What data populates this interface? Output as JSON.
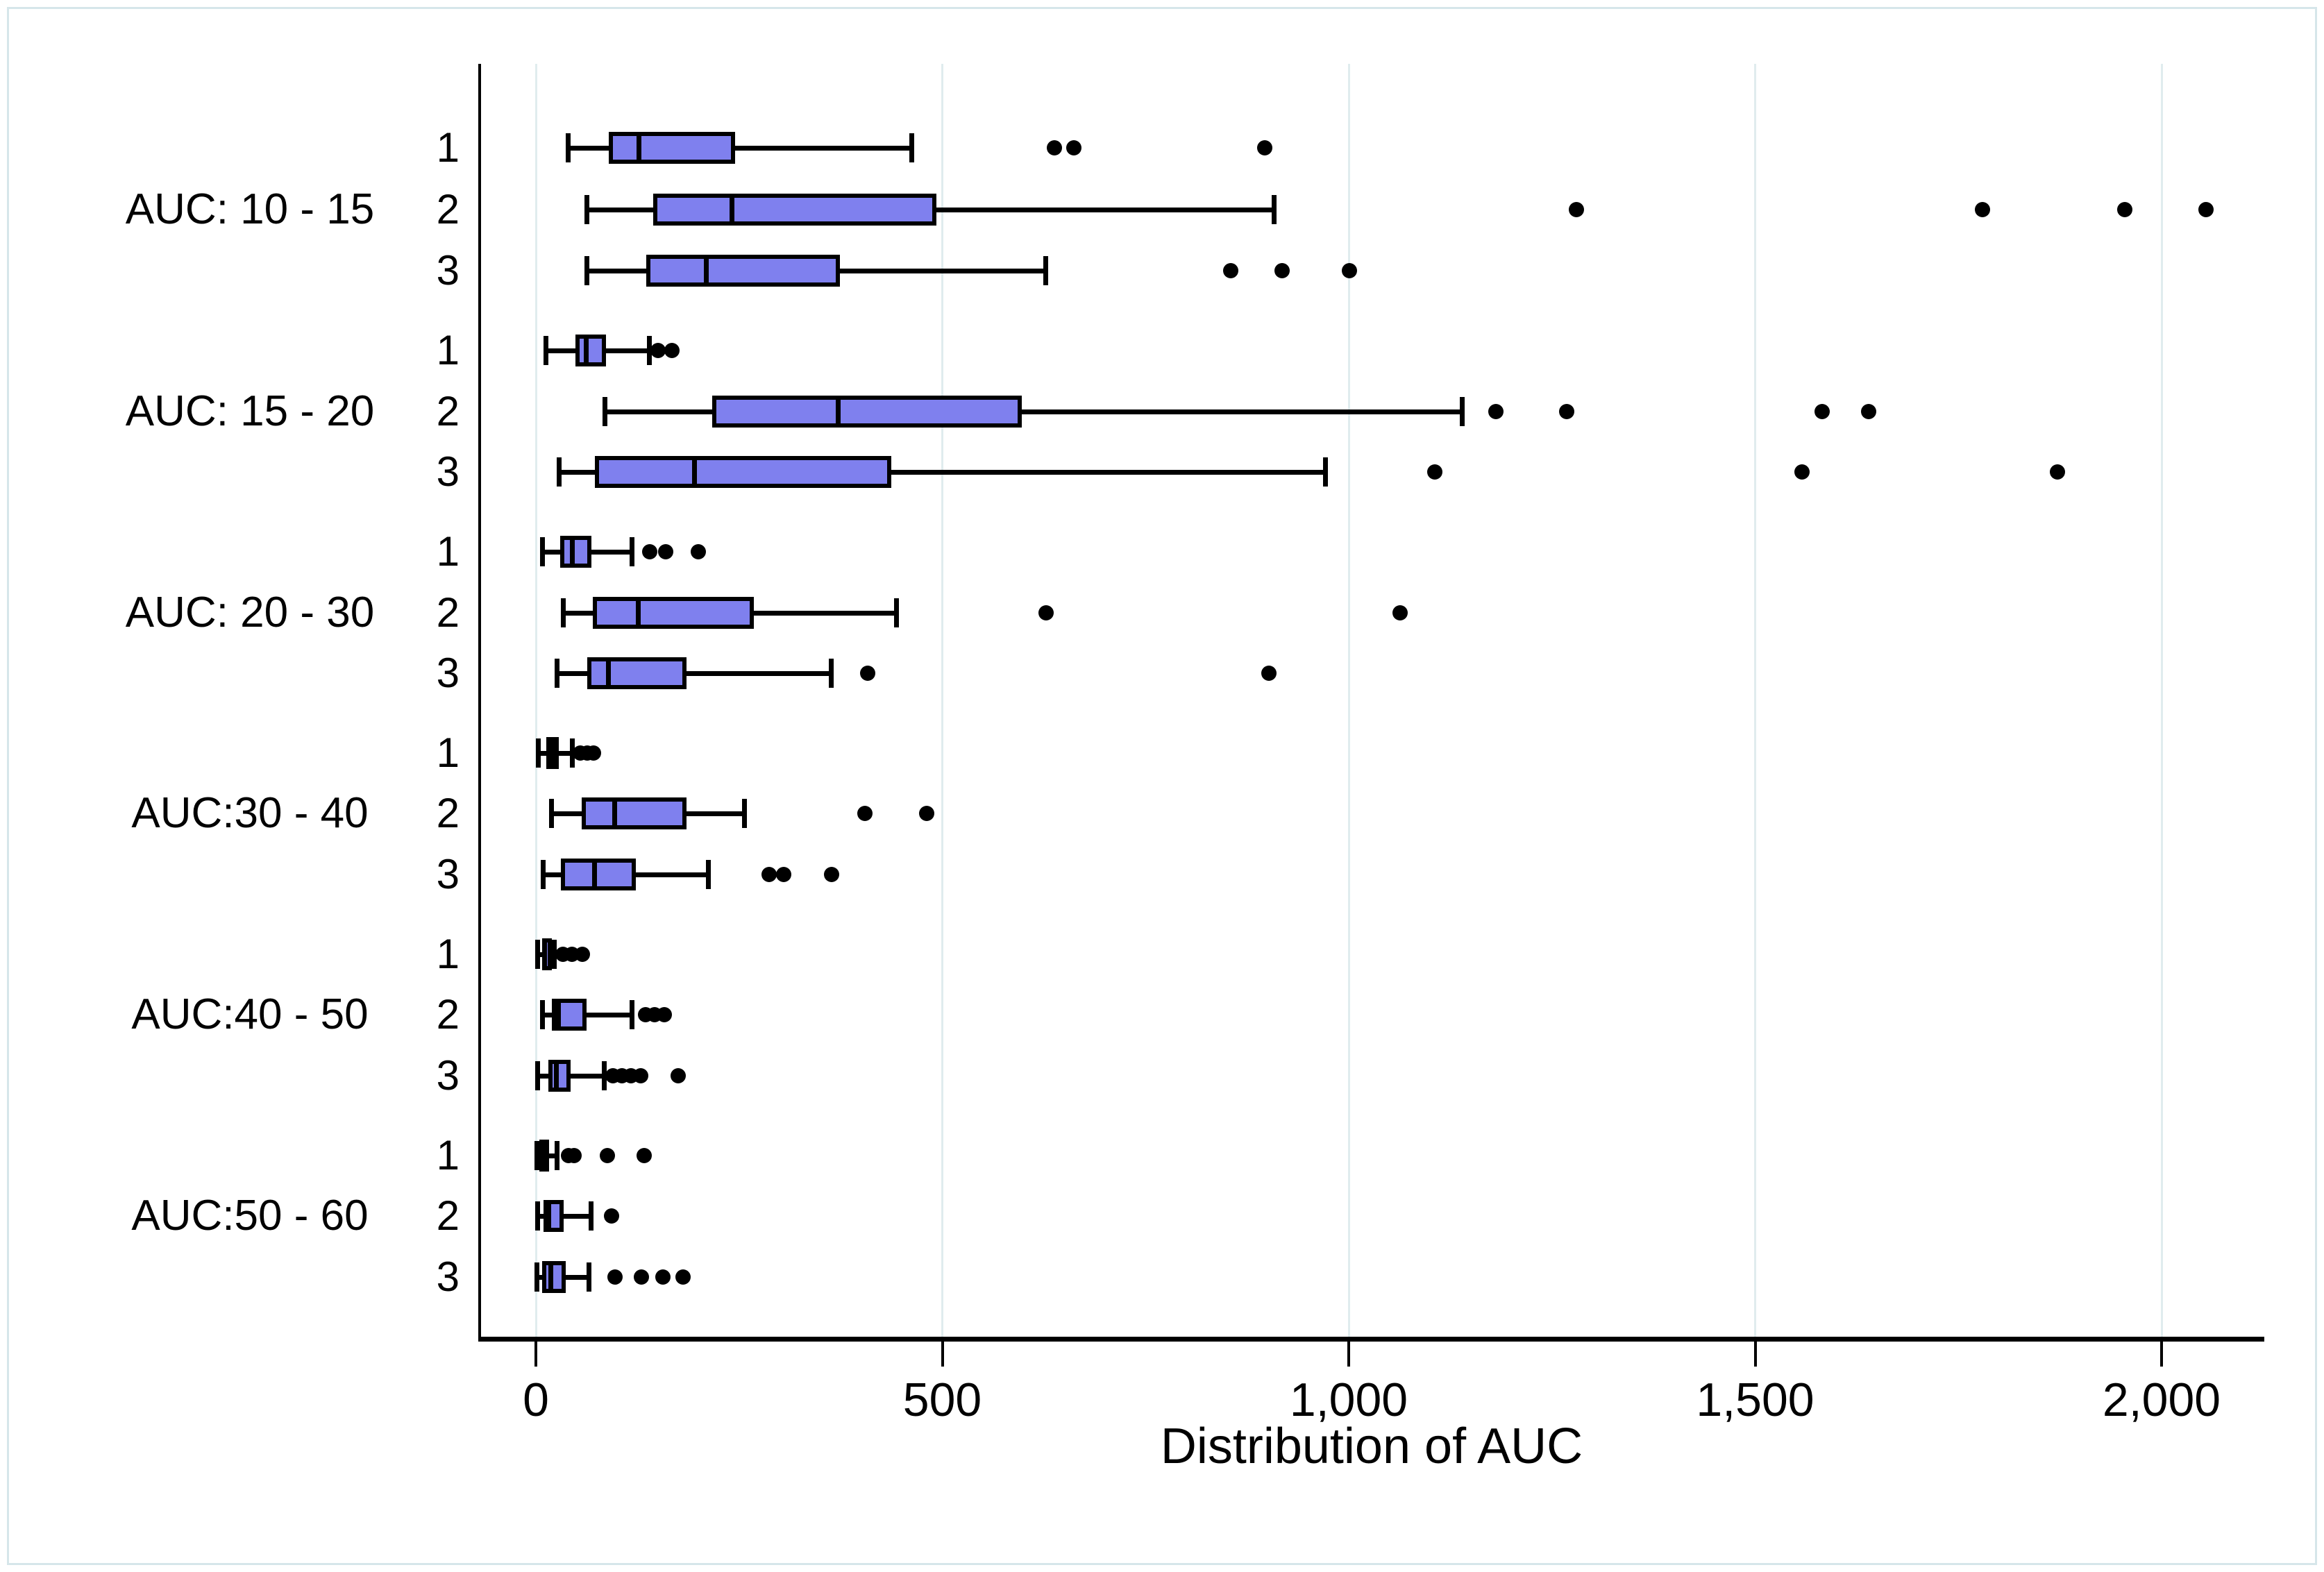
{
  "chart_data": {
    "type": "boxplot_horizontal",
    "title": "",
    "xlabel": "Distribution of AUC",
    "x_tick_values": [
      0,
      500,
      1000,
      1500,
      2000
    ],
    "x_tick_labels": [
      "0",
      "500",
      "1,000",
      "1,500",
      "2,000"
    ],
    "xlim": [
      -70,
      2125
    ],
    "grid": "vertical-gridlines-on",
    "legend": "none",
    "row_labels": [
      "1",
      "2",
      "3"
    ],
    "groups": [
      {
        "label": "AUC: 10 - 15",
        "series": [
          {
            "label": "1",
            "whislo": 40,
            "q1": 90,
            "med": 127,
            "q3": 245,
            "whishi": 462,
            "outliers": [
              638,
              662,
              897
            ]
          },
          {
            "label": "2",
            "whislo": 63,
            "q1": 144,
            "med": 241,
            "q3": 493,
            "whishi": 908,
            "outliers": [
              1280,
              1780,
              1955,
              2055
            ]
          },
          {
            "label": "3",
            "whislo": 63,
            "q1": 136,
            "med": 210,
            "q3": 374,
            "whishi": 627,
            "outliers": [
              855,
              918,
              1001
            ]
          }
        ]
      },
      {
        "label": "AUC: 15 - 20",
        "series": [
          {
            "label": "1",
            "whislo": 12,
            "q1": 49,
            "med": 62,
            "q3": 86,
            "whishi": 140,
            "outliers": [
              150,
              167
            ]
          },
          {
            "label": "2",
            "whislo": 85,
            "q1": 217,
            "med": 372,
            "q3": 598,
            "whishi": 1140,
            "outliers": [
              1181,
              1268,
              1582,
              1640
            ]
          },
          {
            "label": "3",
            "whislo": 29,
            "q1": 73,
            "med": 195,
            "q3": 437,
            "whishi": 971,
            "outliers": [
              1106,
              1558,
              1872
            ]
          }
        ]
      },
      {
        "label": "AUC: 20 - 30",
        "series": [
          {
            "label": "1",
            "whislo": 8,
            "q1": 30,
            "med": 45,
            "q3": 68,
            "whishi": 118,
            "outliers": [
              140,
              160,
              200
            ]
          },
          {
            "label": "2",
            "whislo": 34,
            "q1": 70,
            "med": 126,
            "q3": 268,
            "whishi": 444,
            "outliers": [
              628,
              1063
            ]
          },
          {
            "label": "3",
            "whislo": 26,
            "q1": 63,
            "med": 89,
            "q3": 185,
            "whishi": 363,
            "outliers": [
              408,
              902
            ]
          }
        ]
      },
      {
        "label": "AUC:30 - 40",
        "series": [
          {
            "label": "1",
            "whislo": 3,
            "q1": 13,
            "med": 20,
            "q3": 28,
            "whishi": 45,
            "outliers": [
              55,
              63,
              71
            ]
          },
          {
            "label": "2",
            "whislo": 19,
            "q1": 56,
            "med": 97,
            "q3": 185,
            "whishi": 257,
            "outliers": [
              405,
              481
            ]
          },
          {
            "label": "3",
            "whislo": 9,
            "q1": 31,
            "med": 72,
            "q3": 123,
            "whishi": 212,
            "outliers": [
              287,
              305,
              364
            ]
          }
        ]
      },
      {
        "label": "AUC:40 - 50",
        "series": [
          {
            "label": "1",
            "whislo": 2,
            "q1": 8,
            "med": 11,
            "q3": 15,
            "whishi": 23,
            "outliers": [
              33,
              44,
              57
            ]
          },
          {
            "label": "2",
            "whislo": 8,
            "q1": 20,
            "med": 28,
            "q3": 62,
            "whishi": 118,
            "outliers": [
              135,
              146,
              158
            ]
          },
          {
            "label": "3",
            "whislo": 2,
            "q1": 15,
            "med": 25,
            "q3": 43,
            "whishi": 84,
            "outliers": [
              95,
              106,
              117,
              129,
              175
            ]
          }
        ]
      },
      {
        "label": "AUC:50 - 60",
        "series": [
          {
            "label": "1",
            "whislo": 1,
            "q1": 4,
            "med": 8,
            "q3": 15,
            "whishi": 26,
            "outliers": [
              40,
              47,
              88,
              133
            ]
          },
          {
            "label": "2",
            "whislo": 2,
            "q1": 9,
            "med": 16,
            "q3": 34,
            "whishi": 68,
            "outliers": [
              93
            ]
          },
          {
            "label": "3",
            "whislo": 1,
            "q1": 8,
            "med": 18,
            "q3": 37,
            "whishi": 65,
            "outliers": [
              97,
              130,
              156,
              181
            ]
          }
        ]
      }
    ],
    "style": {
      "box_fill": "#7F80EE",
      "line_color": "#000000",
      "gridline_color": "#E0ECEE",
      "frame_color": "#D6E6EA",
      "background": "#FFFFFF"
    }
  }
}
